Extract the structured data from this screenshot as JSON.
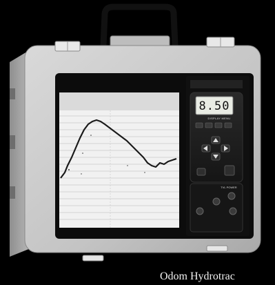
{
  "photo": {
    "caption": "Odom Hydrotrac"
  },
  "device": {
    "display_reading": "8.50",
    "menu_label": "DISPLAY MENU",
    "power_label": "TVL POWER"
  }
}
